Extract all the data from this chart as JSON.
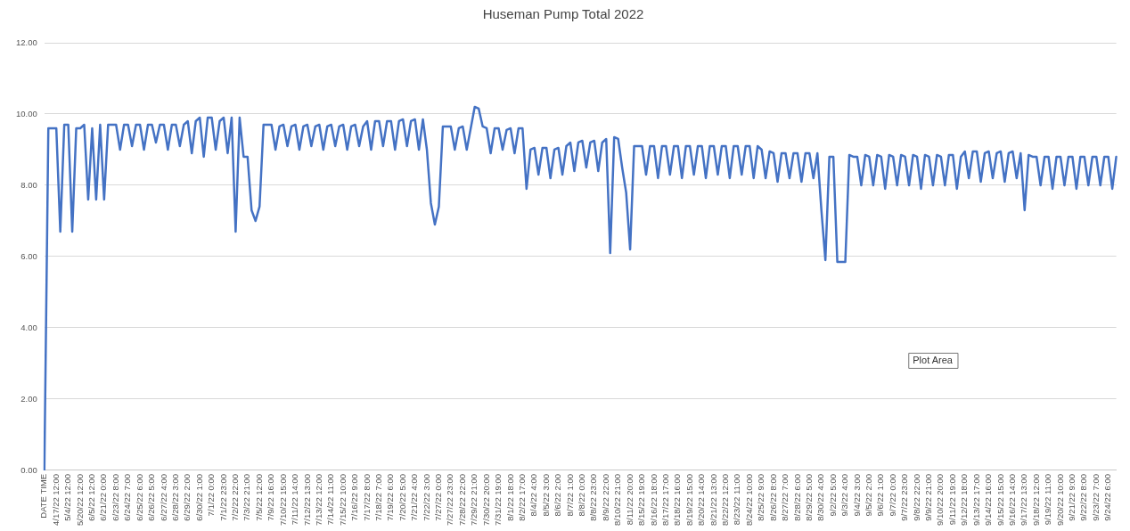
{
  "chart_data": {
    "type": "line",
    "title": "Huseman Pump Total 2022",
    "categories": [
      "DATE TIME",
      null,
      null,
      "4/17/22 12:00",
      null,
      null,
      "5/4/22 12:00",
      null,
      null,
      "5/20/22 12:00",
      null,
      null,
      "6/5/22 12:00",
      null,
      null,
      "6/21/22 0:00",
      null,
      null,
      "6/23/22 8:00",
      null,
      null,
      "6/24/22 7:00",
      null,
      null,
      "6/25/22 6:00",
      null,
      null,
      "6/26/22 5:00",
      null,
      null,
      "6/27/22 4:00",
      null,
      null,
      "6/28/22 3:00",
      null,
      null,
      "6/29/22 2:00",
      null,
      null,
      "6/30/22 1:00",
      null,
      null,
      "7/1/22 0:00",
      null,
      null,
      "7/1/22 23:00",
      null,
      null,
      "7/2/22 22:00",
      null,
      null,
      "7/3/22 21:00",
      null,
      null,
      "7/5/22 12:00",
      null,
      null,
      "7/9/22 16:00",
      null,
      null,
      "7/10/22 15:00",
      null,
      null,
      "7/11/22 14:00",
      null,
      null,
      "7/12/22 13:00",
      null,
      null,
      "7/13/22 12:00",
      null,
      null,
      "7/14/22 11:00",
      null,
      null,
      "7/15/22 10:00",
      null,
      null,
      "7/16/22 9:00",
      null,
      null,
      "7/17/22 8:00",
      null,
      null,
      "7/18/22 7:00",
      null,
      null,
      "7/19/22 6:00",
      null,
      null,
      "7/20/22 5:00",
      null,
      null,
      "7/21/22 4:00",
      null,
      null,
      "7/22/22 3:00",
      null,
      null,
      "7/27/22 0:00",
      null,
      null,
      "7/27/22 23:00",
      null,
      null,
      "7/28/22 22:00",
      null,
      null,
      "7/29/22 21:00",
      null,
      null,
      "7/30/22 20:00",
      null,
      null,
      "7/31/22 19:00",
      null,
      null,
      "8/1/22 18:00",
      null,
      null,
      "8/2/22 17:00",
      null,
      null,
      "8/4/22 4:00",
      null,
      null,
      "8/5/22 3:00",
      null,
      null,
      "8/6/22 2:00",
      null,
      null,
      "8/7/22 1:00",
      null,
      null,
      "8/8/22 0:00",
      null,
      null,
      "8/8/22 23:00",
      null,
      null,
      "8/9/22 22:00",
      null,
      null,
      "8/10/22 21:00",
      null,
      null,
      "8/11/22 20:00",
      null,
      null,
      "8/15/22 19:00",
      null,
      null,
      "8/16/22 18:00",
      null,
      null,
      "8/17/22 17:00",
      null,
      null,
      "8/18/22 16:00",
      null,
      null,
      "8/19/22 15:00",
      null,
      null,
      "8/20/22 14:00",
      null,
      null,
      "8/21/22 13:00",
      null,
      null,
      "8/22/22 12:00",
      null,
      null,
      "8/23/22 11:00",
      null,
      null,
      "8/24/22 10:00",
      null,
      null,
      "8/25/22 9:00",
      null,
      null,
      "8/26/22 8:00",
      null,
      null,
      "8/27/22 7:00",
      null,
      null,
      "8/28/22 6:00",
      null,
      null,
      "8/29/22 5:00",
      null,
      null,
      "8/30/22 4:00",
      null,
      null,
      "9/2/22 5:00",
      null,
      null,
      "9/3/22 4:00",
      null,
      null,
      "9/4/22 3:00",
      null,
      null,
      "9/5/22 2:00",
      null,
      null,
      "9/6/22 1:00",
      null,
      null,
      "9/7/22 0:00",
      null,
      null,
      "9/7/22 23:00",
      null,
      null,
      "9/8/22 22:00",
      null,
      null,
      "9/9/22 21:00",
      null,
      null,
      "9/10/22 20:00",
      null,
      null,
      "9/11/22 19:00",
      null,
      null,
      "9/12/22 18:00",
      null,
      null,
      "9/13/22 17:00",
      null,
      null,
      "9/14/22 16:00",
      null,
      null,
      "9/15/22 15:00",
      null,
      null,
      "9/16/22 14:00",
      null,
      null,
      "9/17/22 13:00",
      null,
      null,
      "9/18/22 12:00",
      null,
      null,
      "9/19/22 11:00",
      null,
      null,
      "9/20/22 10:00",
      null,
      null,
      "9/21/22 9:00",
      null,
      null,
      "9/22/22 8:00",
      null,
      null,
      "9/23/22 7:00",
      null,
      null,
      "9/24/22 6:00",
      null,
      null
    ],
    "values": [
      0,
      9.6,
      9.6,
      9.6,
      6.7,
      9.7,
      9.7,
      6.7,
      9.6,
      9.6,
      9.7,
      7.6,
      9.6,
      7.6,
      9.7,
      7.6,
      9.7,
      9.7,
      9.7,
      9.0,
      9.7,
      9.7,
      9.1,
      9.7,
      9.7,
      9.0,
      9.7,
      9.7,
      9.2,
      9.7,
      9.7,
      9.0,
      9.7,
      9.7,
      9.1,
      9.7,
      9.8,
      8.9,
      9.8,
      9.9,
      8.8,
      9.9,
      9.9,
      9.0,
      9.8,
      9.9,
      8.9,
      9.9,
      6.7,
      9.9,
      8.8,
      8.8,
      7.3,
      7.0,
      7.4,
      9.7,
      9.7,
      9.7,
      9.0,
      9.65,
      9.7,
      9.1,
      9.65,
      9.7,
      9.0,
      9.65,
      9.7,
      9.1,
      9.65,
      9.7,
      9.0,
      9.65,
      9.7,
      9.1,
      9.65,
      9.7,
      9.0,
      9.65,
      9.7,
      9.1,
      9.65,
      9.8,
      9.0,
      9.8,
      9.8,
      9.1,
      9.8,
      9.8,
      9.0,
      9.8,
      9.85,
      9.1,
      9.8,
      9.85,
      9.0,
      9.85,
      9.0,
      7.5,
      6.9,
      7.4,
      9.65,
      9.65,
      9.65,
      9.0,
      9.6,
      9.65,
      9.0,
      9.6,
      10.2,
      10.15,
      9.65,
      9.6,
      8.9,
      9.6,
      9.6,
      9.0,
      9.55,
      9.6,
      8.9,
      9.6,
      9.6,
      7.9,
      9.0,
      9.05,
      8.3,
      9.05,
      9.05,
      8.2,
      9.0,
      9.05,
      8.3,
      9.1,
      9.2,
      8.4,
      9.2,
      9.25,
      8.5,
      9.2,
      9.25,
      8.4,
      9.2,
      9.3,
      6.1,
      9.35,
      9.3,
      8.5,
      7.8,
      6.2,
      9.1,
      9.1,
      9.1,
      8.3,
      9.1,
      9.1,
      8.2,
      9.1,
      9.1,
      8.3,
      9.1,
      9.1,
      8.2,
      9.1,
      9.1,
      8.3,
      9.1,
      9.1,
      8.2,
      9.1,
      9.1,
      8.3,
      9.1,
      9.1,
      8.2,
      9.1,
      9.1,
      8.3,
      9.1,
      9.1,
      8.2,
      9.1,
      9.0,
      8.2,
      8.95,
      8.9,
      8.1,
      8.9,
      8.9,
      8.2,
      8.9,
      8.9,
      8.1,
      8.9,
      8.9,
      8.2,
      8.9,
      7.3,
      5.9,
      8.8,
      8.8,
      5.85,
      5.85,
      5.85,
      8.85,
      8.8,
      8.8,
      8.0,
      8.85,
      8.8,
      8.0,
      8.85,
      8.8,
      7.9,
      8.85,
      8.8,
      8.0,
      8.85,
      8.8,
      8.0,
      8.85,
      8.8,
      7.9,
      8.85,
      8.8,
      8.0,
      8.85,
      8.8,
      8.0,
      8.85,
      8.85,
      7.9,
      8.8,
      8.95,
      8.2,
      8.95,
      8.95,
      8.1,
      8.9,
      8.95,
      8.2,
      8.9,
      8.95,
      8.1,
      8.9,
      8.95,
      8.2,
      8.9,
      7.3,
      8.85,
      8.8,
      8.8,
      8.0,
      8.8,
      8.8,
      7.9,
      8.8,
      8.8,
      8.0,
      8.8,
      8.8,
      7.9,
      8.8,
      8.8,
      8.0,
      8.8,
      8.8,
      8.0,
      8.8,
      8.8,
      7.9,
      8.8
    ],
    "color": "#4472c4",
    "ylim": [
      0,
      12
    ],
    "yticks": [
      {
        "value": 0,
        "label": "0.00"
      },
      {
        "value": 2,
        "label": "2.00"
      },
      {
        "value": 4,
        "label": "4.00"
      },
      {
        "value": 6,
        "label": "6.00"
      },
      {
        "value": 8,
        "label": "8.00"
      },
      {
        "value": 10,
        "label": "10.00"
      },
      {
        "value": 12,
        "label": "12.00"
      }
    ],
    "grid": "y",
    "legend": false,
    "marker": "none",
    "line_style": "solid",
    "annotations": [
      "Plot Area"
    ]
  }
}
